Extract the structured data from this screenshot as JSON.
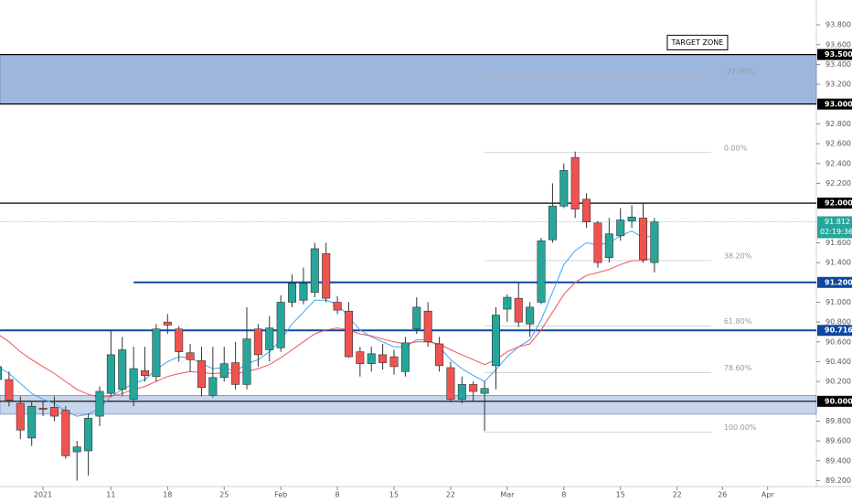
{
  "chart_data": {
    "type": "candlestick",
    "x": [
      -4,
      -3,
      -2,
      -1,
      0,
      1,
      2,
      3,
      4,
      5,
      6,
      7,
      8,
      9,
      10,
      11,
      12,
      13,
      14,
      15,
      16,
      17,
      18,
      19,
      20,
      21,
      22,
      23,
      24,
      25,
      26,
      27,
      28,
      29,
      30,
      31,
      32,
      33,
      34,
      35,
      36,
      37,
      38,
      39,
      40,
      41,
      42,
      43,
      44,
      45,
      46,
      47,
      48,
      49,
      50,
      51,
      52,
      53,
      54
    ],
    "open": [
      90.22,
      90.22,
      89.98,
      89.63,
      89.93,
      89.94,
      89.91,
      89.49,
      89.5,
      89.85,
      90.08,
      90.12,
      90.02,
      90.31,
      90.25,
      90.8,
      90.73,
      90.49,
      90.41,
      90.06,
      90.24,
      90.39,
      90.17,
      90.73,
      90.52,
      90.54,
      91.0,
      91.02,
      91.1,
      91.49,
      91.0,
      90.91,
      90.5,
      90.38,
      90.47,
      90.45,
      90.3,
      90.73,
      90.91,
      90.58,
      90.34,
      90.02,
      90.17,
      90.08,
      90.36,
      90.93,
      91.04,
      90.78,
      91.0,
      91.63,
      91.97,
      92.46,
      92.04,
      91.8,
      91.45,
      91.67,
      91.82,
      91.85,
      91.4
    ],
    "high": [
      90.45,
      90.3,
      90.05,
      90.0,
      90.0,
      90.05,
      89.95,
      89.6,
      89.88,
      90.15,
      90.72,
      90.65,
      90.55,
      90.55,
      90.78,
      90.88,
      90.76,
      90.58,
      90.55,
      90.55,
      90.55,
      90.6,
      90.95,
      90.78,
      90.86,
      91.07,
      91.28,
      91.35,
      91.6,
      91.6,
      91.06,
      91.0,
      90.55,
      90.55,
      90.58,
      90.52,
      90.65,
      91.05,
      91.0,
      90.65,
      90.4,
      90.25,
      90.2,
      90.2,
      90.95,
      91.08,
      91.2,
      91.0,
      91.65,
      92.2,
      92.4,
      92.52,
      92.1,
      91.82,
      91.85,
      91.95,
      91.98,
      92.0,
      91.85
    ],
    "low": [
      90.1,
      89.95,
      89.62,
      89.55,
      89.85,
      89.8,
      89.42,
      89.2,
      89.25,
      89.75,
      90.05,
      90.05,
      89.95,
      90.2,
      90.2,
      90.68,
      90.4,
      90.3,
      90.05,
      90.04,
      90.2,
      90.12,
      90.12,
      90.35,
      90.4,
      90.5,
      90.95,
      90.98,
      91.05,
      91.0,
      90.88,
      90.44,
      90.25,
      90.3,
      90.32,
      90.27,
      90.25,
      90.68,
      90.55,
      90.3,
      89.99,
      89.98,
      90.0,
      89.7,
      90.12,
      90.8,
      90.75,
      90.65,
      90.98,
      91.6,
      91.95,
      91.85,
      91.75,
      91.35,
      91.4,
      91.62,
      91.75,
      91.4,
      91.3
    ],
    "close": [
      90.35,
      90.01,
      89.71,
      89.95,
      89.92,
      89.85,
      89.45,
      89.54,
      89.83,
      90.1,
      90.47,
      90.52,
      90.33,
      90.26,
      90.73,
      90.77,
      90.5,
      90.42,
      90.14,
      90.24,
      90.38,
      90.17,
      90.63,
      90.47,
      90.74,
      91.0,
      91.19,
      91.19,
      91.54,
      91.04,
      90.92,
      90.45,
      90.38,
      90.48,
      90.39,
      90.35,
      90.59,
      90.95,
      90.6,
      90.36,
      90.02,
      90.17,
      90.1,
      90.13,
      90.87,
      91.05,
      90.8,
      90.95,
      91.62,
      91.97,
      92.33,
      91.94,
      91.81,
      91.4,
      91.69,
      91.83,
      91.86,
      91.43,
      91.81
    ],
    "up_color": "#26a69a",
    "down_color": "#ef5350",
    "series": [
      {
        "color": "#42a5f5",
        "values": [
          90.35,
          90.28,
          90.18,
          90.08,
          90.02,
          89.98,
          89.9,
          89.85,
          89.87,
          89.93,
          90.05,
          90.12,
          90.18,
          90.22,
          90.32,
          90.4,
          90.45,
          90.44,
          90.38,
          90.33,
          90.34,
          90.3,
          90.38,
          90.42,
          90.5,
          90.62,
          90.78,
          90.9,
          91.02,
          91.02,
          90.98,
          90.85,
          90.72,
          90.65,
          90.6,
          90.55,
          90.55,
          90.62,
          90.62,
          90.55,
          90.42,
          90.33,
          90.26,
          90.2,
          90.32,
          90.45,
          90.55,
          90.62,
          90.82,
          91.1,
          91.38,
          91.52,
          91.6,
          91.58,
          91.6,
          91.67,
          91.72,
          91.65,
          91.68
        ]
      },
      {
        "color": "#ef5350",
        "values": [
          90.68,
          90.6,
          90.5,
          90.42,
          90.35,
          90.28,
          90.2,
          90.12,
          90.07,
          90.04,
          90.05,
          90.08,
          90.12,
          90.15,
          90.2,
          90.25,
          90.28,
          90.3,
          90.29,
          90.28,
          90.29,
          90.28,
          90.3,
          90.33,
          90.37,
          90.44,
          90.52,
          90.6,
          90.68,
          90.72,
          90.74,
          90.72,
          90.68,
          90.66,
          90.63,
          90.6,
          90.58,
          90.6,
          90.6,
          90.58,
          90.52,
          90.47,
          90.42,
          90.37,
          90.42,
          90.5,
          90.55,
          90.58,
          90.72,
          90.9,
          91.08,
          91.2,
          91.27,
          91.3,
          91.33,
          91.38,
          91.42,
          91.42,
          91.45
        ]
      }
    ],
    "xlim": [
      -3.8,
      68.3
    ],
    "ylim": [
      89.14,
      94.05
    ],
    "xticks": [
      {
        "value": 0,
        "label": "2021"
      },
      {
        "value": 6,
        "label": "11"
      },
      {
        "value": 11,
        "label": "18"
      },
      {
        "value": 16,
        "label": "25"
      },
      {
        "value": 21,
        "label": "Feb"
      },
      {
        "value": 26,
        "label": "8"
      },
      {
        "value": 31,
        "label": "15"
      },
      {
        "value": 36,
        "label": "22"
      },
      {
        "value": 41,
        "label": "Mar"
      },
      {
        "value": 46,
        "label": "8"
      },
      {
        "value": 51,
        "label": "15"
      },
      {
        "value": 56,
        "label": "22"
      },
      {
        "value": 60,
        "label": "26"
      },
      {
        "value": 64,
        "label": "Apr"
      }
    ],
    "yticks": [
      {
        "value": 93.8,
        "label": "93.800"
      },
      {
        "value": 93.6,
        "label": "93.600"
      },
      {
        "value": 93.4,
        "label": "93.400"
      },
      {
        "value": 93.2,
        "label": "93.200"
      },
      {
        "value": 92.8,
        "label": "92.800"
      },
      {
        "value": 92.6,
        "label": "92.600"
      },
      {
        "value": 92.4,
        "label": "92.400"
      },
      {
        "value": 92.2,
        "label": "92.200"
      },
      {
        "value": 91.6,
        "label": "91.600"
      },
      {
        "value": 91.4,
        "label": "91.400"
      },
      {
        "value": 91.0,
        "label": "91.000"
      },
      {
        "value": 90.8,
        "label": "90.800"
      },
      {
        "value": 90.6,
        "label": "90.600"
      },
      {
        "value": 90.4,
        "label": "90.400"
      },
      {
        "value": 90.2,
        "label": "90.200"
      },
      {
        "value": 89.8,
        "label": "89.800"
      },
      {
        "value": 89.6,
        "label": "89.600"
      },
      {
        "value": 89.4,
        "label": "89.400"
      },
      {
        "value": 89.2,
        "label": "89.200"
      }
    ],
    "zones": [
      {
        "from": 93.0,
        "to": 93.5,
        "color": "#9db6dc"
      },
      {
        "from": 89.87,
        "to": 90.06,
        "color": "#c8d6ec"
      }
    ],
    "levels": [
      {
        "value": 93.5,
        "label": "93.500",
        "color": "#000000"
      },
      {
        "value": 93.0,
        "label": "93.000",
        "color": "#000000"
      },
      {
        "value": 92.0,
        "label": "92.000",
        "color": "#000000"
      },
      {
        "value": 91.2,
        "label": "91.200",
        "color": "#0d47a1",
        "from_x": 8
      },
      {
        "value": 90.716,
        "label": "90.716",
        "color": "#0d47a1"
      },
      {
        "value": 90.0,
        "label": "90.000",
        "color": "#000000"
      }
    ],
    "fib": {
      "from_x": 39,
      "to_x": 59,
      "levels": [
        {
          "price": 93.28,
          "label": "-27.00%"
        },
        {
          "price": 92.51,
          "label": "0.00%"
        },
        {
          "price": 91.42,
          "label": "38.20%"
        },
        {
          "price": 90.76,
          "label": "61.80%"
        },
        {
          "price": 90.29,
          "label": "78.60%"
        },
        {
          "price": 89.69,
          "label": "100.00%"
        }
      ]
    },
    "last_price": {
      "value": 91.812,
      "label": "91.812",
      "countdown": "02:19:36",
      "color": "#26a69a"
    },
    "annotation": {
      "text": "TARGET ZONE",
      "x": 57.8,
      "y": 93.62
    }
  }
}
